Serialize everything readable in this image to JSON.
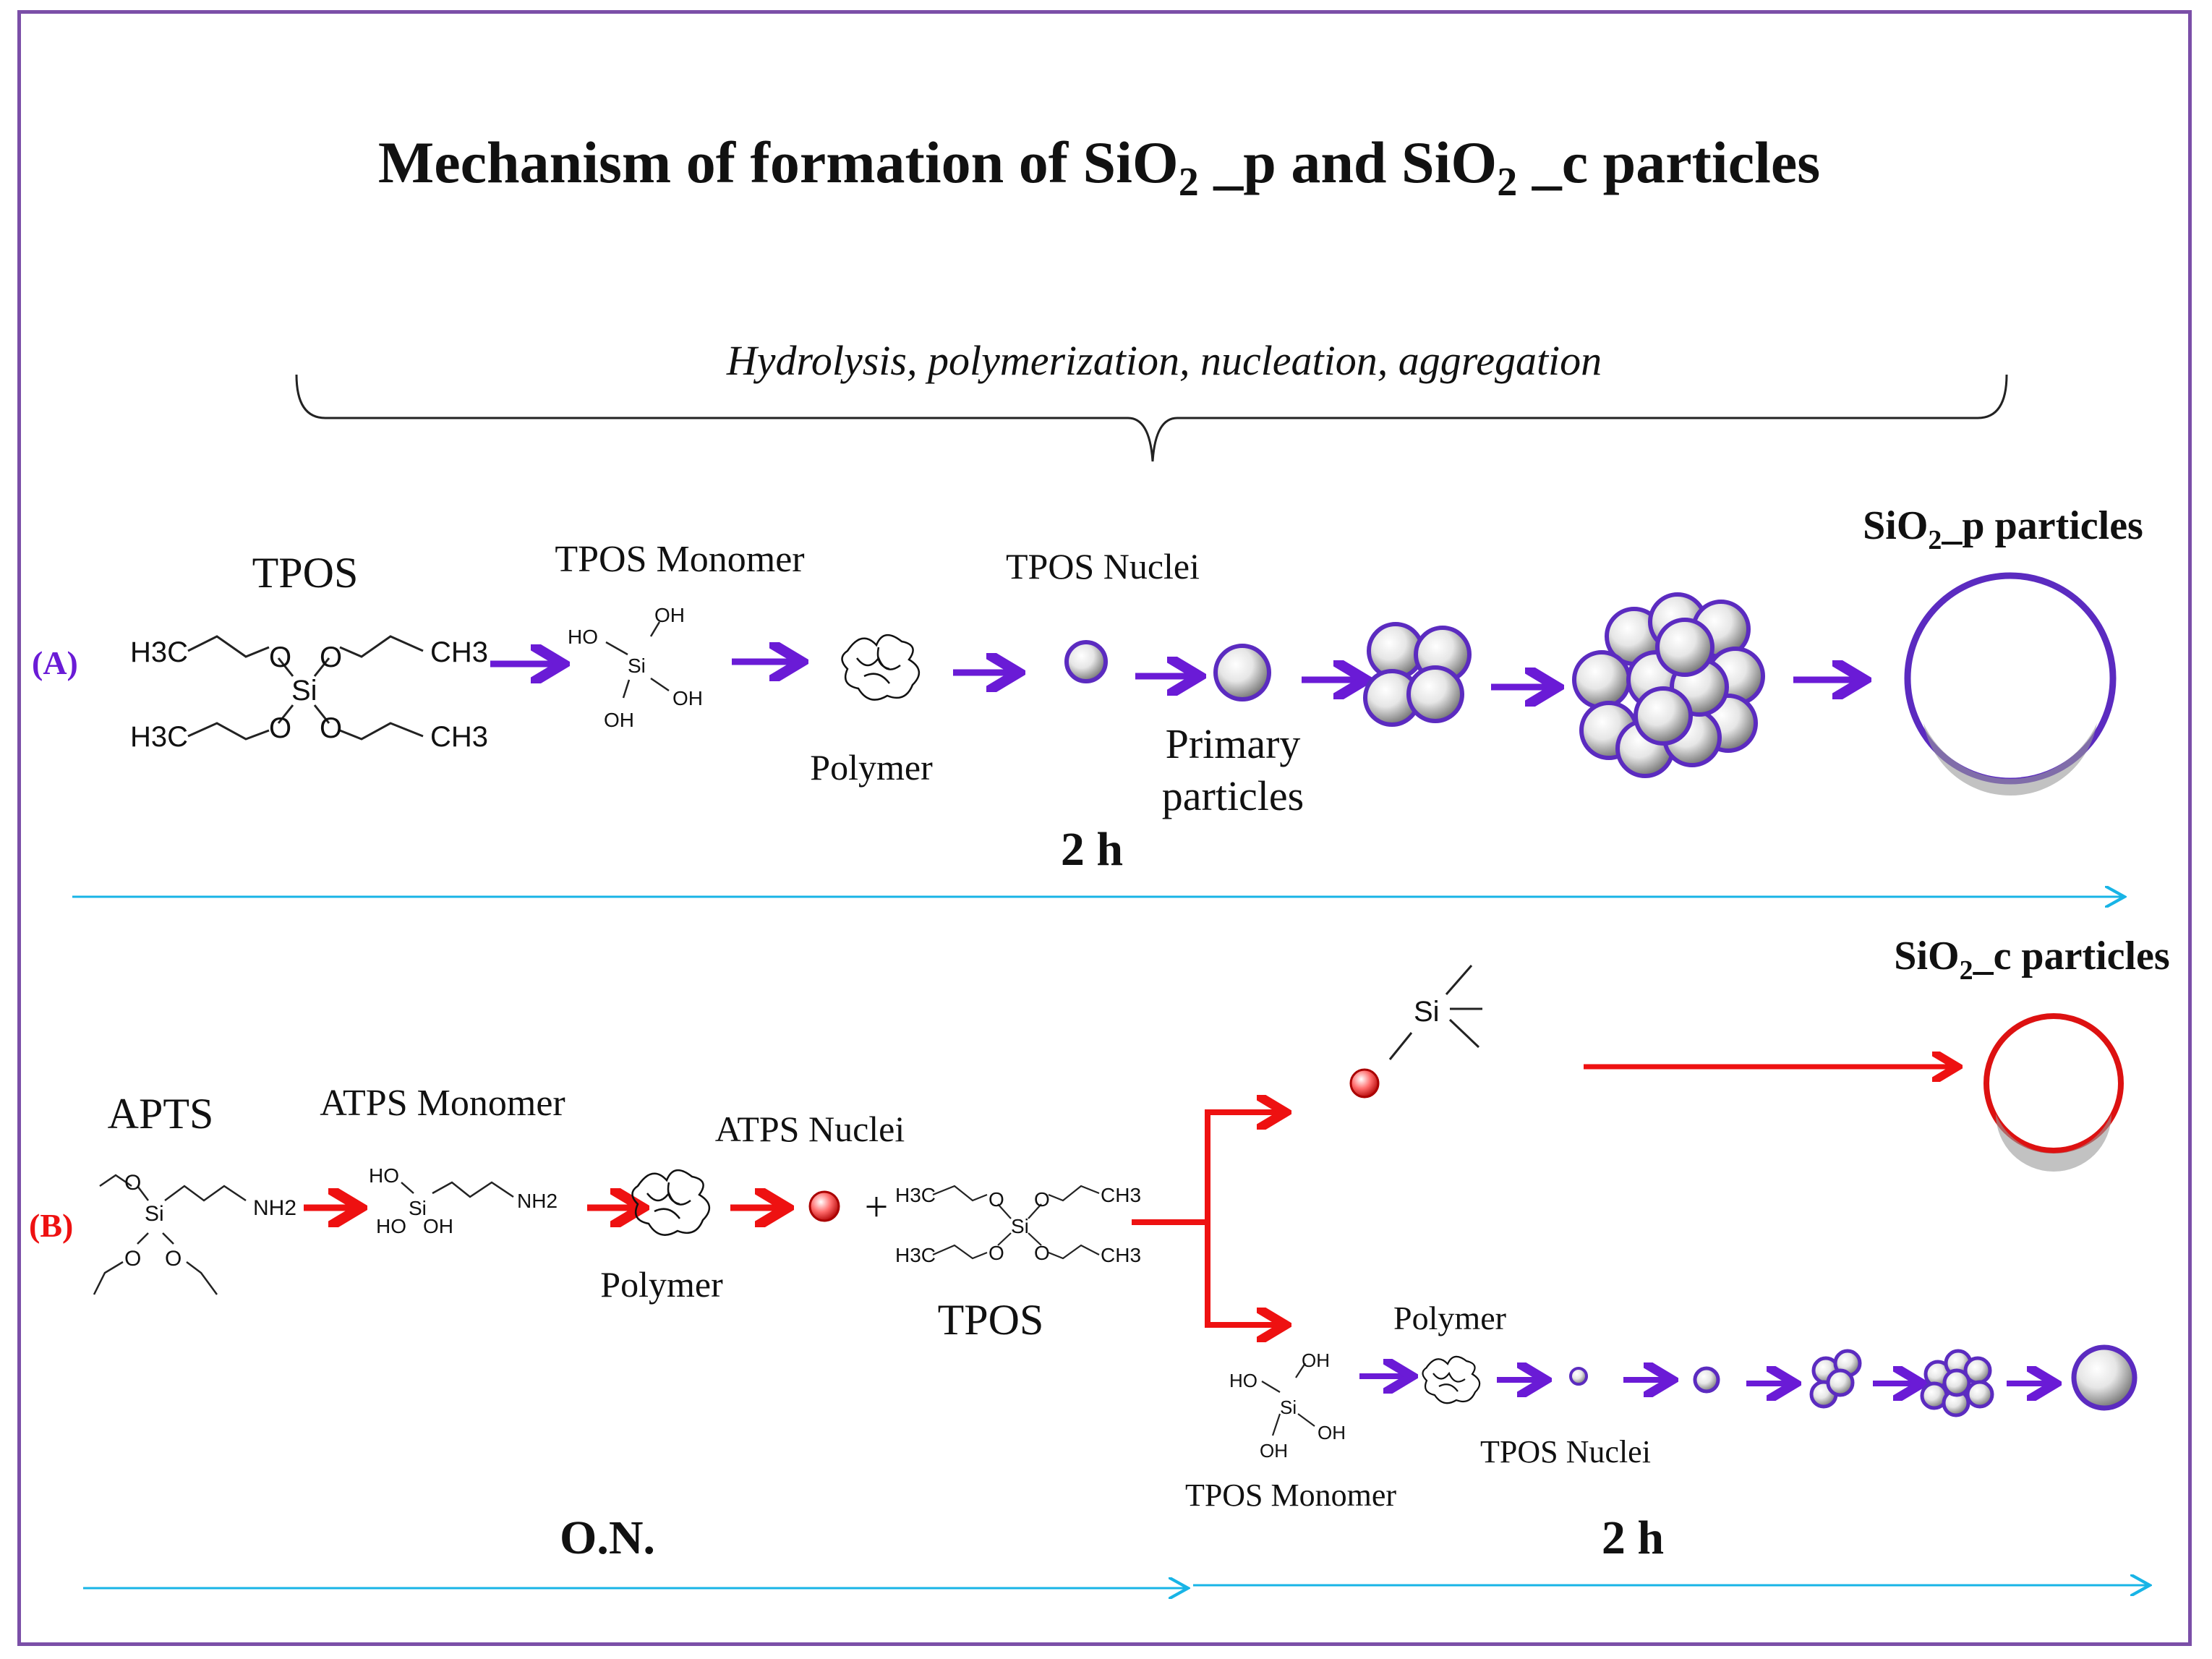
{
  "title": {
    "pre": "Mechanism of formation of SiO",
    "sub": "2",
    "mid": " _p and SiO",
    "sub2": "2",
    "post": " _c particles"
  },
  "process_label": "Hydrolysis, polymerization, nucleation, aggregation",
  "row_a": {
    "marker": "(A)",
    "tpos": "TPOS",
    "monomer": "TPOS Monomer",
    "nuclei": "TPOS Nuclei",
    "polymer": "Polymer",
    "primary_1": "Primary",
    "primary_2": "particles",
    "result": {
      "pre": "SiO",
      "sub": "2",
      "post": "_p particles"
    },
    "time": "2 h"
  },
  "row_b": {
    "marker": "(B)",
    "apts": "APTS",
    "monomer": "ATPS Monomer",
    "nuclei": "ATPS Nuclei",
    "polymer": "Polymer",
    "tpos": "TPOS",
    "plus": "+",
    "result": {
      "pre": "SiO",
      "sub": "2",
      "post": "_c particles"
    },
    "branch_polymer": "Polymer",
    "branch_nuclei": "TPOS Nuclei",
    "branch_monomer": "TPOS Monomer",
    "time_on": "O.N.",
    "time_2h": "2 h"
  },
  "chem": {
    "h3c": "H3C",
    "ch3": "CH3",
    "o": "O",
    "si": "Si",
    "oh": "OH",
    "ho": "HO",
    "nh2": "NH2"
  },
  "colors": {
    "purple": "#6a1bd6",
    "red": "#ee1111",
    "cyan": "#18b4e6",
    "frame": "#7b4fa8"
  }
}
